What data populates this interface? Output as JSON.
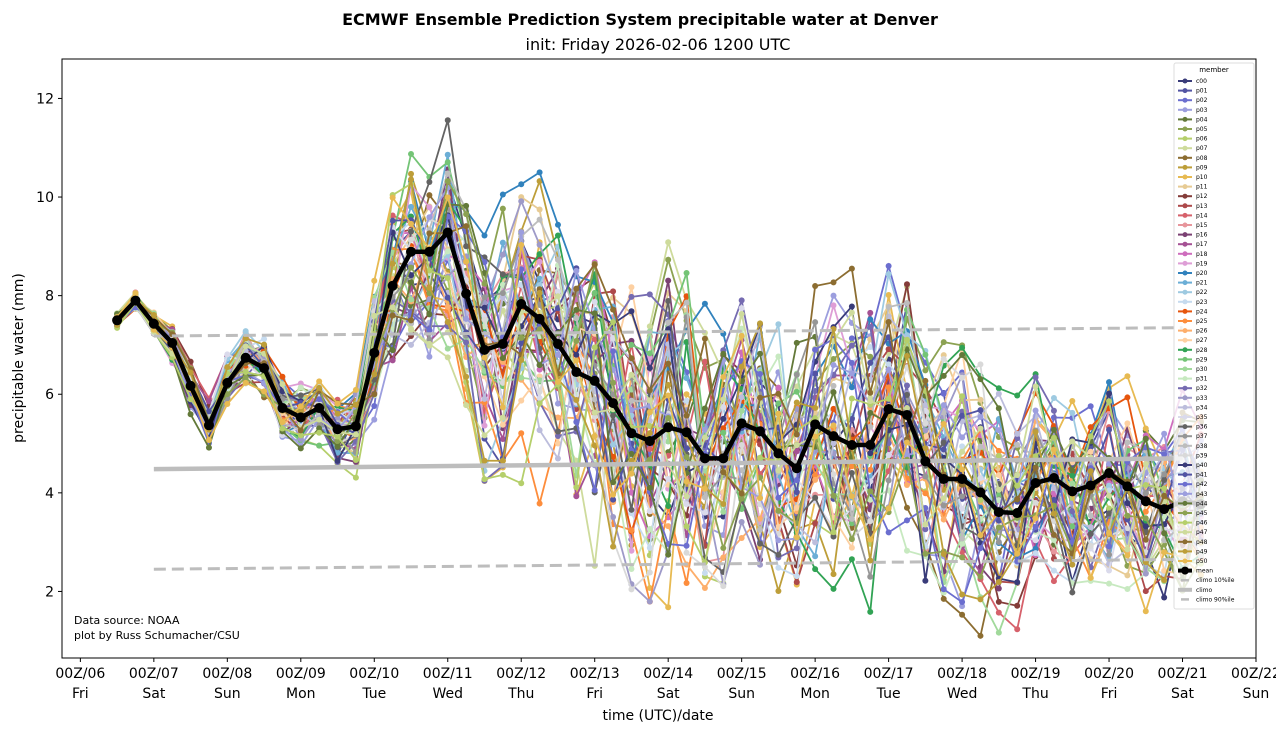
{
  "chart_data": {
    "type": "line",
    "title": "ECMWF Ensemble Prediction System precipitable water at Denver",
    "subtitle": "init: Friday 2026-02-06 1200 UTC",
    "xlabel": "time (UTC)/date",
    "ylabel": "precipitable water (mm)",
    "xlim_days": [
      -0.25,
      16.0
    ],
    "ylim": [
      0.65,
      12.8
    ],
    "x_ticks": [
      {
        "day": 0,
        "label": "00Z/06",
        "weekday": "Fri"
      },
      {
        "day": 1,
        "label": "00Z/07",
        "weekday": "Sat"
      },
      {
        "day": 2,
        "label": "00Z/08",
        "weekday": "Sun"
      },
      {
        "day": 3,
        "label": "00Z/09",
        "weekday": "Mon"
      },
      {
        "day": 4,
        "label": "00Z/10",
        "weekday": "Tue"
      },
      {
        "day": 5,
        "label": "00Z/11",
        "weekday": "Wed"
      },
      {
        "day": 6,
        "label": "00Z/12",
        "weekday": "Thu"
      },
      {
        "day": 7,
        "label": "00Z/13",
        "weekday": "Fri"
      },
      {
        "day": 8,
        "label": "00Z/14",
        "weekday": "Sat"
      },
      {
        "day": 9,
        "label": "00Z/15",
        "weekday": "Sun"
      },
      {
        "day": 10,
        "label": "00Z/16",
        "weekday": "Mon"
      },
      {
        "day": 11,
        "label": "00Z/17",
        "weekday": "Tue"
      },
      {
        "day": 12,
        "label": "00Z/18",
        "weekday": "Wed"
      },
      {
        "day": 13,
        "label": "00Z/19",
        "weekday": "Thu"
      },
      {
        "day": 14,
        "label": "00Z/20",
        "weekday": "Fri"
      },
      {
        "day": 15,
        "label": "00Z/21",
        "weekday": "Sat"
      },
      {
        "day": 16,
        "label": "00Z/22",
        "weekday": "Sun"
      }
    ],
    "y_ticks": [
      2,
      4,
      6,
      8,
      10,
      12
    ],
    "x_start_day": 0.5,
    "x_step_days": 0.25,
    "mean": [
      7.5,
      7.9,
      7.43,
      7.04,
      6.17,
      5.37,
      6.23,
      6.74,
      6.53,
      5.72,
      5.53,
      5.72,
      5.29,
      5.35,
      6.84,
      8.2,
      8.89,
      8.89,
      9.28,
      8.04,
      6.9,
      7.02,
      7.83,
      7.53,
      7.02,
      6.45,
      6.27,
      5.82,
      5.21,
      5.05,
      5.33,
      5.23,
      4.7,
      4.7,
      5.41,
      5.25,
      4.8,
      4.5,
      5.39,
      5.15,
      4.97,
      4.97,
      5.7,
      5.58,
      4.64,
      4.28,
      4.28,
      4.01,
      3.61,
      3.59,
      4.2,
      4.3,
      4.03,
      4.15,
      4.4,
      4.13,
      3.83,
      3.67,
      3.83,
      3.77
    ],
    "climo": {
      "day_range": [
        1,
        15
      ],
      "p10": [
        2.45,
        2.65
      ],
      "median": [
        4.48,
        4.7
      ],
      "p90": [
        7.18,
        7.35
      ]
    },
    "member_spread_by_step": [
      0.15,
      0.15,
      0.2,
      0.3,
      0.35,
      0.3,
      0.45,
      0.5,
      0.5,
      0.5,
      0.5,
      0.5,
      0.55,
      0.6,
      1.1,
      1.5,
      1.6,
      1.6,
      1.7,
      1.7,
      1.8,
      1.9,
      1.9,
      2.0,
      2.0,
      2.1,
      2.2,
      2.3,
      2.4,
      2.4,
      2.4,
      2.4,
      2.3,
      2.2,
      2.2,
      2.1,
      2.1,
      2.0,
      2.0,
      2.0,
      2.0,
      2.0,
      2.0,
      2.0,
      1.9,
      1.8,
      1.7,
      1.6,
      1.5,
      1.5,
      1.5,
      1.5,
      1.5,
      1.5,
      1.5,
      1.4,
      1.4,
      1.3,
      1.3,
      1.3
    ],
    "legend": {
      "title": "member",
      "position": "top-right",
      "members": [
        {
          "name": "c00",
          "color": "#393b79"
        },
        {
          "name": "p01",
          "color": "#5254a3"
        },
        {
          "name": "p02",
          "color": "#6b6ecf"
        },
        {
          "name": "p03",
          "color": "#9c9ede"
        },
        {
          "name": "p04",
          "color": "#637939"
        },
        {
          "name": "p05",
          "color": "#8ca252"
        },
        {
          "name": "p06",
          "color": "#b5cf6b"
        },
        {
          "name": "p07",
          "color": "#cedb9c"
        },
        {
          "name": "p08",
          "color": "#8c6d31"
        },
        {
          "name": "p09",
          "color": "#bd9e39"
        },
        {
          "name": "p10",
          "color": "#e7ba52"
        },
        {
          "name": "p11",
          "color": "#e7cb94"
        },
        {
          "name": "p12",
          "color": "#843c39"
        },
        {
          "name": "p13",
          "color": "#ad494a"
        },
        {
          "name": "p14",
          "color": "#d6616b"
        },
        {
          "name": "p15",
          "color": "#e7969c"
        },
        {
          "name": "p16",
          "color": "#7b4173"
        },
        {
          "name": "p17",
          "color": "#a55194"
        },
        {
          "name": "p18",
          "color": "#ce6dbd"
        },
        {
          "name": "p19",
          "color": "#de9ed6"
        },
        {
          "name": "p20",
          "color": "#3182bd"
        },
        {
          "name": "p21",
          "color": "#6baed6"
        },
        {
          "name": "p22",
          "color": "#9ecae1"
        },
        {
          "name": "p23",
          "color": "#c6dbef"
        },
        {
          "name": "p24",
          "color": "#e6550d"
        },
        {
          "name": "p25",
          "color": "#fd8d3c"
        },
        {
          "name": "p26",
          "color": "#fdae6b"
        },
        {
          "name": "p27",
          "color": "#fdd0a2"
        },
        {
          "name": "p28",
          "color": "#31a354"
        },
        {
          "name": "p29",
          "color": "#74c476"
        },
        {
          "name": "p30",
          "color": "#a1d99b"
        },
        {
          "name": "p31",
          "color": "#c7e9c0"
        },
        {
          "name": "p32",
          "color": "#756bb1"
        },
        {
          "name": "p33",
          "color": "#9e9ac8"
        },
        {
          "name": "p34",
          "color": "#bcbddc"
        },
        {
          "name": "p35",
          "color": "#dadaeb"
        },
        {
          "name": "p36",
          "color": "#636363"
        },
        {
          "name": "p37",
          "color": "#969696"
        },
        {
          "name": "p38",
          "color": "#bdbdbd"
        },
        {
          "name": "p39",
          "color": "#d9d9d9"
        },
        {
          "name": "p40",
          "color": "#393b79"
        },
        {
          "name": "p41",
          "color": "#5254a3"
        },
        {
          "name": "p42",
          "color": "#6b6ecf"
        },
        {
          "name": "p43",
          "color": "#9c9ede"
        },
        {
          "name": "p44",
          "color": "#637939"
        },
        {
          "name": "p45",
          "color": "#8ca252"
        },
        {
          "name": "p46",
          "color": "#b5cf6b"
        },
        {
          "name": "p47",
          "color": "#cedb9c"
        },
        {
          "name": "p48",
          "color": "#8c6d31"
        },
        {
          "name": "p49",
          "color": "#bd9e39"
        },
        {
          "name": "p50",
          "color": "#e7ba52"
        }
      ],
      "mean": {
        "name": "mean",
        "color": "#000000"
      },
      "climo_p10": {
        "name": "climo 10%ile",
        "color": "#bdbdbd"
      },
      "climo": {
        "name": "climo",
        "color": "#bdbdbd"
      },
      "climo_p90": {
        "name": "climo 90%ile",
        "color": "#bdbdbd"
      }
    },
    "annotations": [
      "Data source: NOAA",
      "plot by Russ Schumacher/CSU"
    ]
  }
}
